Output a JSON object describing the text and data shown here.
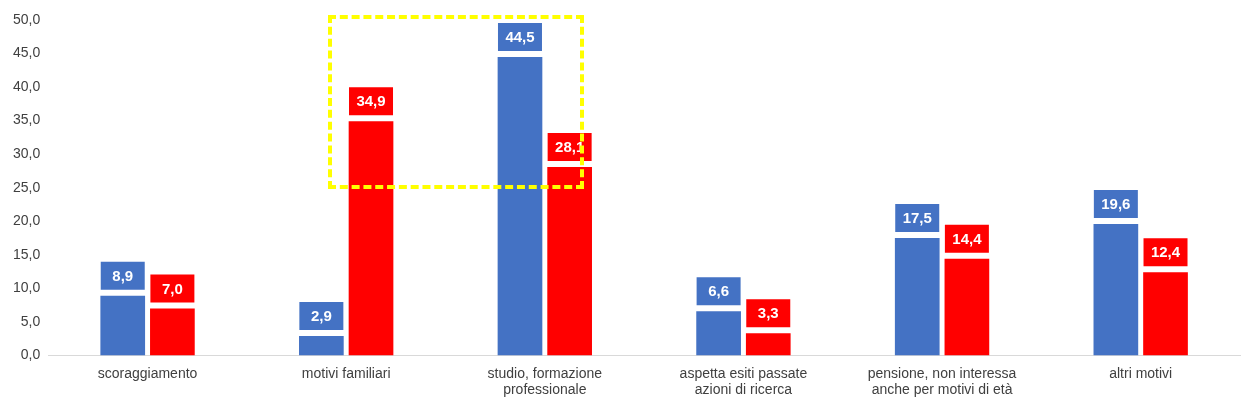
{
  "chart_data": {
    "type": "bar",
    "categories": [
      "scoraggiamento",
      "motivi familiari",
      "studio, formazione professionale",
      "aspetta esiti passate azioni di ricerca",
      "pensione, non interessa anche per motivi di età",
      "altri motivi"
    ],
    "series": [
      {
        "color": "#4472c4",
        "values": [
          8.9,
          2.9,
          44.5,
          6.6,
          17.5,
          19.6
        ],
        "value_labels": [
          "8,9",
          "2,9",
          "44,5",
          "6,6",
          "17,5",
          "19,6"
        ]
      },
      {
        "color": "#ff0000",
        "values": [
          7.0,
          34.9,
          28.1,
          3.3,
          14.4,
          12.4
        ],
        "value_labels": [
          "7,0",
          "34,9",
          "28,1",
          "3,3",
          "14,4",
          "12,4"
        ]
      }
    ],
    "ylim": [
      0,
      50
    ],
    "yticks": [
      {
        "value": 0,
        "label": "0,0"
      },
      {
        "value": 5,
        "label": "5,0"
      },
      {
        "value": 10,
        "label": "10,0"
      },
      {
        "value": 15,
        "label": "15,0"
      },
      {
        "value": 20,
        "label": "20,0"
      },
      {
        "value": 25,
        "label": "25,0"
      },
      {
        "value": 30,
        "label": "30,0"
      },
      {
        "value": 35,
        "label": "35,0"
      },
      {
        "value": 40,
        "label": "40,0"
      },
      {
        "value": 45,
        "label": "45,0"
      },
      {
        "value": 50,
        "label": "50,0"
      }
    ],
    "grid": false,
    "legend": false
  }
}
